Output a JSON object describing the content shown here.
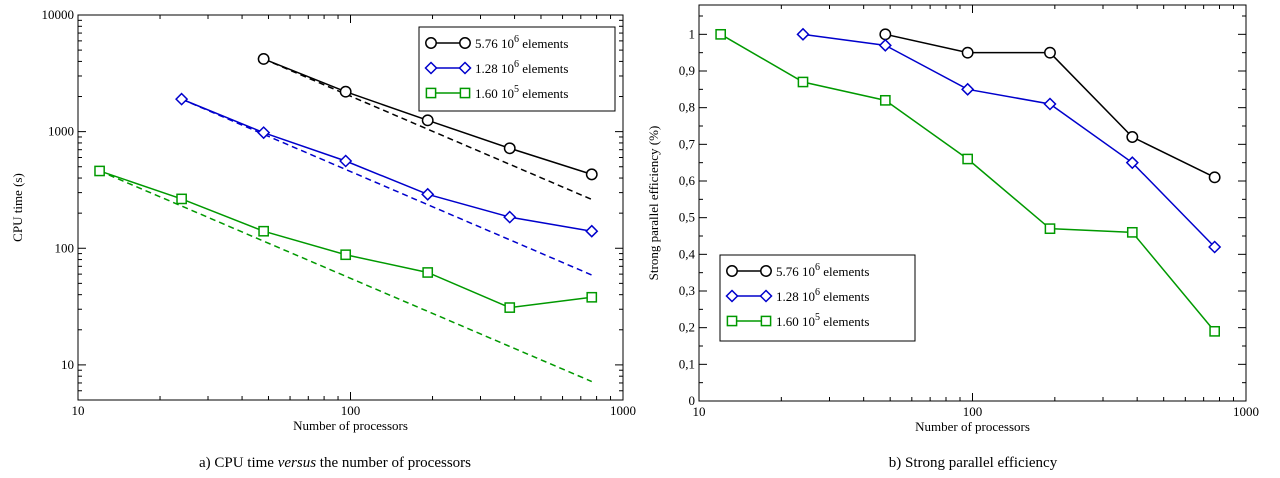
{
  "chart_data": [
    {
      "type": "line",
      "caption_prefix": "a) CPU time ",
      "caption_em": "versus",
      "caption_suffix": " the number of processors",
      "xlabel": "Number of processors",
      "ylabel": "CPU time (s)",
      "xscale": "log",
      "yscale": "log",
      "xlim": [
        10,
        1000
      ],
      "ylim": [
        5,
        10000
      ],
      "x_ticks": [
        10,
        100,
        1000
      ],
      "x_tick_labels": [
        "10",
        "100",
        "1000"
      ],
      "y_ticks": [
        10,
        100,
        1000,
        10000
      ],
      "y_tick_labels": [
        "10",
        "100",
        "1000",
        "10000"
      ],
      "grid": false,
      "legend_position": "top-right",
      "series": [
        {
          "name_main": "5.76 10",
          "name_sup": "6",
          "name_tail": " elements",
          "color": "#000000",
          "marker": "circle",
          "x": [
            48,
            96,
            192,
            384,
            768
          ],
          "y": [
            4200,
            2200,
            1250,
            720,
            430
          ]
        },
        {
          "name_main": "1.28 10",
          "name_sup": "6",
          "name_tail": " elements",
          "color": "#0000cc",
          "marker": "diamond",
          "x": [
            24,
            48,
            96,
            192,
            384,
            768
          ],
          "y": [
            1900,
            980,
            560,
            290,
            185,
            140
          ]
        },
        {
          "name_main": "1.60 10",
          "name_sup": "5",
          "name_tail": " elements",
          "color": "#009900",
          "marker": "square",
          "x": [
            12,
            24,
            48,
            96,
            192,
            384,
            768
          ],
          "y": [
            460,
            265,
            140,
            88,
            62,
            31,
            38
          ]
        }
      ],
      "ideal_lines": [
        {
          "color": "#000000",
          "x": [
            48,
            768
          ],
          "y": [
            4200,
            262
          ]
        },
        {
          "color": "#0000cc",
          "x": [
            24,
            768
          ],
          "y": [
            1900,
            59
          ]
        },
        {
          "color": "#009900",
          "x": [
            12,
            768
          ],
          "y": [
            460,
            7.2
          ]
        }
      ]
    },
    {
      "type": "line",
      "caption_prefix": "b) Strong parallel efficiency",
      "caption_em": "",
      "caption_suffix": "",
      "xlabel": "Number of processors",
      "ylabel": "Strong parallel efficiency (%)",
      "xscale": "log",
      "yscale": "linear",
      "xlim": [
        10,
        1000
      ],
      "ylim": [
        0,
        1.08
      ],
      "x_ticks": [
        10,
        100,
        1000
      ],
      "x_tick_labels": [
        "10",
        "100",
        "1000"
      ],
      "y_ticks": [
        0,
        0.1,
        0.2,
        0.3,
        0.4,
        0.5,
        0.6,
        0.7,
        0.8,
        0.9,
        1
      ],
      "y_tick_labels": [
        "0",
        "0,1",
        "0,2",
        "0,3",
        "0,4",
        "0,5",
        "0,6",
        "0,7",
        "0,8",
        "0,9",
        "1"
      ],
      "grid": false,
      "legend_position": "bottom-left",
      "series": [
        {
          "name_main": "5.76 10",
          "name_sup": "6",
          "name_tail": " elements",
          "color": "#000000",
          "marker": "circle",
          "x": [
            48,
            96,
            192,
            384,
            768
          ],
          "y": [
            1.0,
            0.95,
            0.95,
            0.72,
            0.61
          ]
        },
        {
          "name_main": "1.28 10",
          "name_sup": "6",
          "name_tail": " elements",
          "color": "#0000cc",
          "marker": "diamond",
          "x": [
            24,
            48,
            96,
            192,
            384,
            768
          ],
          "y": [
            1.0,
            0.97,
            0.85,
            0.81,
            0.65,
            0.42
          ]
        },
        {
          "name_main": "1.60 10",
          "name_sup": "5",
          "name_tail": " elements",
          "color": "#009900",
          "marker": "square",
          "x": [
            12,
            24,
            48,
            96,
            192,
            384,
            768
          ],
          "y": [
            1.0,
            0.87,
            0.82,
            0.66,
            0.47,
            0.46,
            0.19
          ]
        }
      ]
    }
  ]
}
